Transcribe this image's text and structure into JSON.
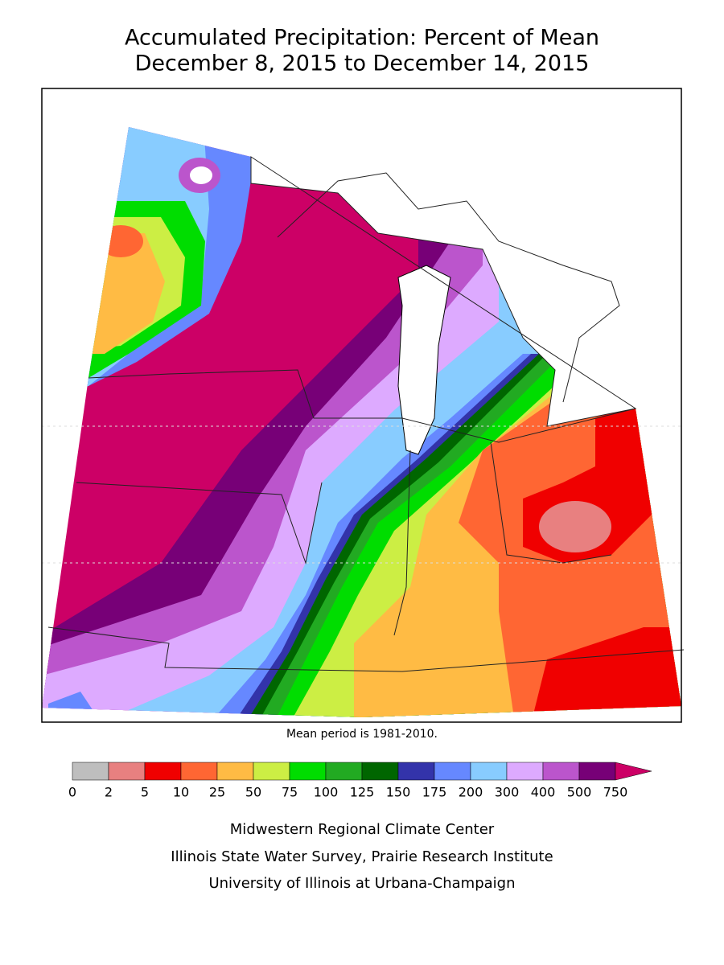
{
  "title": {
    "line1": "Accumulated Precipitation: Percent of Mean",
    "line2": "December 8, 2015 to December 14, 2015"
  },
  "map_note": "Mean period is 1981-2010.",
  "legend": {
    "colors": [
      "#bebebe",
      "#e88080",
      "#f00000",
      "#ff6633",
      "#ffbb44",
      "#ccee44",
      "#00dd00",
      "#22aa22",
      "#006600",
      "#3333aa",
      "#6688ff",
      "#88ccff",
      "#ddaaff",
      "#bb55cc",
      "#770077",
      "#cc0066"
    ],
    "labels": [
      0,
      2,
      5,
      10,
      25,
      50,
      75,
      100,
      125,
      150,
      175,
      200,
      300,
      400,
      500,
      750
    ]
  },
  "credits": [
    "Midwestern Regional Climate Center",
    "Illinois State Water Survey, Prairie Research Institute",
    "University of Illinois at Urbana-Champaign"
  ]
}
